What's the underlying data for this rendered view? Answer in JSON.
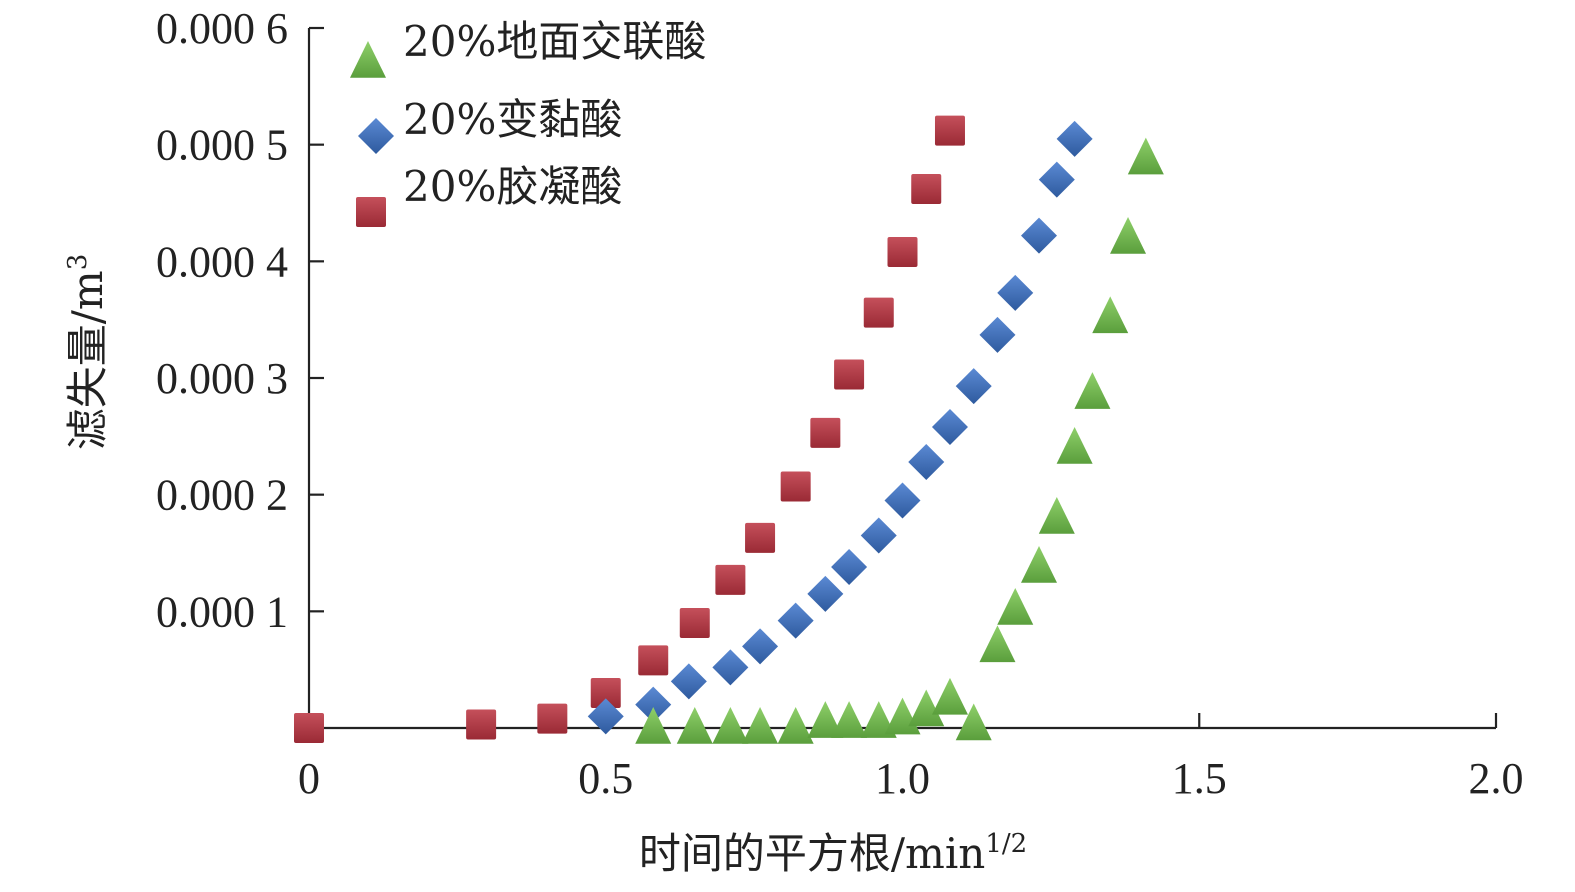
{
  "chart_data": {
    "type": "scatter",
    "xlabel": "时间的平方根/min",
    "xlabel_sup": "1/2",
    "ylabel": "滤失量/m",
    "ylabel_sup": "3",
    "xlim": [
      0,
      2.0
    ],
    "ylim": [
      0,
      0.0006
    ],
    "xticks": [
      {
        "value": 0,
        "label": "0"
      },
      {
        "value": 0.5,
        "label": "0.5"
      },
      {
        "value": 1.0,
        "label": "1.0"
      },
      {
        "value": 1.5,
        "label": "1.5"
      },
      {
        "value": 2.0,
        "label": "2.0"
      }
    ],
    "yticks": [
      {
        "value": 0.0001,
        "label": "0.000 1"
      },
      {
        "value": 0.0002,
        "label": "0.000 2"
      },
      {
        "value": 0.0003,
        "label": "0.000 3"
      },
      {
        "value": 0.0004,
        "label": "0.000 4"
      },
      {
        "value": 0.0005,
        "label": "0.000 5"
      },
      {
        "value": 0.0006,
        "label": "0.000 6"
      }
    ],
    "grid": false,
    "legend_position": "top-left",
    "series": [
      {
        "name": "20%地面交联酸",
        "marker": "triangle",
        "color": "#6ab04c",
        "x": [
          0.58,
          0.65,
          0.71,
          0.76,
          0.82,
          0.87,
          0.91,
          0.96,
          1.0,
          1.04,
          1.08,
          1.12,
          1.16,
          1.19,
          1.23,
          1.26,
          1.29,
          1.32,
          1.35,
          1.38,
          1.41
        ],
        "y": [
          0,
          0,
          0,
          0,
          0,
          5e-06,
          5e-06,
          5e-06,
          8e-06,
          1.5e-05,
          2.5e-05,
          3e-06,
          7e-05,
          0.000102,
          0.000138,
          0.00018,
          0.00024,
          0.000287,
          0.000352,
          0.00042,
          0.000488
        ]
      },
      {
        "name": "20%变黏酸",
        "marker": "diamond",
        "color": "#3d6db5",
        "x": [
          0.5,
          0.58,
          0.64,
          0.71,
          0.76,
          0.82,
          0.87,
          0.91,
          0.96,
          1.0,
          1.04,
          1.08,
          1.12,
          1.16,
          1.19,
          1.23,
          1.26,
          1.29
        ],
        "y": [
          1e-05,
          2e-05,
          4e-05,
          5.2e-05,
          7e-05,
          9.2e-05,
          0.000115,
          0.000138,
          0.000165,
          0.000195,
          0.000228,
          0.000258,
          0.000293,
          0.000337,
          0.000373,
          0.000422,
          0.00047,
          0.000505
        ]
      },
      {
        "name": "20%胶凝酸",
        "marker": "square",
        "color": "#b33a45",
        "x": [
          0,
          0.29,
          0.41,
          0.5,
          0.58,
          0.65,
          0.71,
          0.76,
          0.82,
          0.87,
          0.91,
          0.96,
          1.0,
          1.04,
          1.08
        ],
        "y": [
          0,
          3e-06,
          8e-06,
          3e-05,
          5.8e-05,
          9e-05,
          0.000127,
          0.000163,
          0.000207,
          0.000253,
          0.000303,
          0.000356,
          0.000408,
          0.000462,
          0.000512
        ]
      }
    ]
  }
}
